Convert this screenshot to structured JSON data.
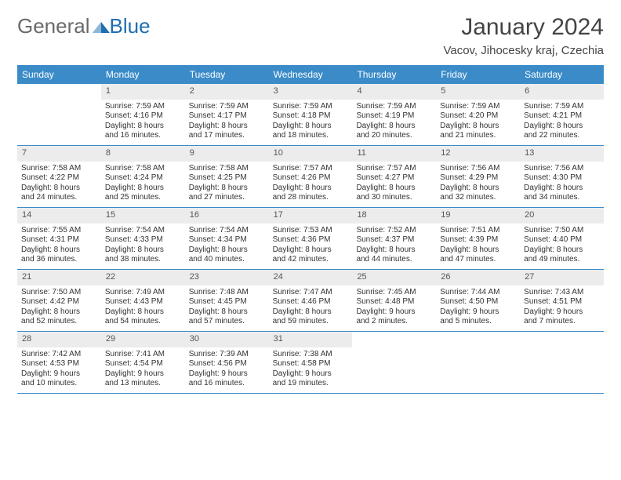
{
  "logo": {
    "part1": "General",
    "part2": "Blue"
  },
  "title": "January 2024",
  "location": "Vacov, Jihocesky kraj, Czechia",
  "colors": {
    "header_bg": "#3b8bc9",
    "header_text": "#ffffff",
    "daynum_bg": "#ececec",
    "border": "#3b8bc9",
    "logo_gray": "#6a6a6a",
    "logo_blue": "#1f6fb2"
  },
  "daysOfWeek": [
    "Sunday",
    "Monday",
    "Tuesday",
    "Wednesday",
    "Thursday",
    "Friday",
    "Saturday"
  ],
  "weeks": [
    [
      {
        "n": "",
        "sr": "",
        "ss": "",
        "dl1": "",
        "dl2": "",
        "empty": true
      },
      {
        "n": "1",
        "sr": "Sunrise: 7:59 AM",
        "ss": "Sunset: 4:16 PM",
        "dl1": "Daylight: 8 hours",
        "dl2": "and 16 minutes."
      },
      {
        "n": "2",
        "sr": "Sunrise: 7:59 AM",
        "ss": "Sunset: 4:17 PM",
        "dl1": "Daylight: 8 hours",
        "dl2": "and 17 minutes."
      },
      {
        "n": "3",
        "sr": "Sunrise: 7:59 AM",
        "ss": "Sunset: 4:18 PM",
        "dl1": "Daylight: 8 hours",
        "dl2": "and 18 minutes."
      },
      {
        "n": "4",
        "sr": "Sunrise: 7:59 AM",
        "ss": "Sunset: 4:19 PM",
        "dl1": "Daylight: 8 hours",
        "dl2": "and 20 minutes."
      },
      {
        "n": "5",
        "sr": "Sunrise: 7:59 AM",
        "ss": "Sunset: 4:20 PM",
        "dl1": "Daylight: 8 hours",
        "dl2": "and 21 minutes."
      },
      {
        "n": "6",
        "sr": "Sunrise: 7:59 AM",
        "ss": "Sunset: 4:21 PM",
        "dl1": "Daylight: 8 hours",
        "dl2": "and 22 minutes."
      }
    ],
    [
      {
        "n": "7",
        "sr": "Sunrise: 7:58 AM",
        "ss": "Sunset: 4:22 PM",
        "dl1": "Daylight: 8 hours",
        "dl2": "and 24 minutes."
      },
      {
        "n": "8",
        "sr": "Sunrise: 7:58 AM",
        "ss": "Sunset: 4:24 PM",
        "dl1": "Daylight: 8 hours",
        "dl2": "and 25 minutes."
      },
      {
        "n": "9",
        "sr": "Sunrise: 7:58 AM",
        "ss": "Sunset: 4:25 PM",
        "dl1": "Daylight: 8 hours",
        "dl2": "and 27 minutes."
      },
      {
        "n": "10",
        "sr": "Sunrise: 7:57 AM",
        "ss": "Sunset: 4:26 PM",
        "dl1": "Daylight: 8 hours",
        "dl2": "and 28 minutes."
      },
      {
        "n": "11",
        "sr": "Sunrise: 7:57 AM",
        "ss": "Sunset: 4:27 PM",
        "dl1": "Daylight: 8 hours",
        "dl2": "and 30 minutes."
      },
      {
        "n": "12",
        "sr": "Sunrise: 7:56 AM",
        "ss": "Sunset: 4:29 PM",
        "dl1": "Daylight: 8 hours",
        "dl2": "and 32 minutes."
      },
      {
        "n": "13",
        "sr": "Sunrise: 7:56 AM",
        "ss": "Sunset: 4:30 PM",
        "dl1": "Daylight: 8 hours",
        "dl2": "and 34 minutes."
      }
    ],
    [
      {
        "n": "14",
        "sr": "Sunrise: 7:55 AM",
        "ss": "Sunset: 4:31 PM",
        "dl1": "Daylight: 8 hours",
        "dl2": "and 36 minutes."
      },
      {
        "n": "15",
        "sr": "Sunrise: 7:54 AM",
        "ss": "Sunset: 4:33 PM",
        "dl1": "Daylight: 8 hours",
        "dl2": "and 38 minutes."
      },
      {
        "n": "16",
        "sr": "Sunrise: 7:54 AM",
        "ss": "Sunset: 4:34 PM",
        "dl1": "Daylight: 8 hours",
        "dl2": "and 40 minutes."
      },
      {
        "n": "17",
        "sr": "Sunrise: 7:53 AM",
        "ss": "Sunset: 4:36 PM",
        "dl1": "Daylight: 8 hours",
        "dl2": "and 42 minutes."
      },
      {
        "n": "18",
        "sr": "Sunrise: 7:52 AM",
        "ss": "Sunset: 4:37 PM",
        "dl1": "Daylight: 8 hours",
        "dl2": "and 44 minutes."
      },
      {
        "n": "19",
        "sr": "Sunrise: 7:51 AM",
        "ss": "Sunset: 4:39 PM",
        "dl1": "Daylight: 8 hours",
        "dl2": "and 47 minutes."
      },
      {
        "n": "20",
        "sr": "Sunrise: 7:50 AM",
        "ss": "Sunset: 4:40 PM",
        "dl1": "Daylight: 8 hours",
        "dl2": "and 49 minutes."
      }
    ],
    [
      {
        "n": "21",
        "sr": "Sunrise: 7:50 AM",
        "ss": "Sunset: 4:42 PM",
        "dl1": "Daylight: 8 hours",
        "dl2": "and 52 minutes."
      },
      {
        "n": "22",
        "sr": "Sunrise: 7:49 AM",
        "ss": "Sunset: 4:43 PM",
        "dl1": "Daylight: 8 hours",
        "dl2": "and 54 minutes."
      },
      {
        "n": "23",
        "sr": "Sunrise: 7:48 AM",
        "ss": "Sunset: 4:45 PM",
        "dl1": "Daylight: 8 hours",
        "dl2": "and 57 minutes."
      },
      {
        "n": "24",
        "sr": "Sunrise: 7:47 AM",
        "ss": "Sunset: 4:46 PM",
        "dl1": "Daylight: 8 hours",
        "dl2": "and 59 minutes."
      },
      {
        "n": "25",
        "sr": "Sunrise: 7:45 AM",
        "ss": "Sunset: 4:48 PM",
        "dl1": "Daylight: 9 hours",
        "dl2": "and 2 minutes."
      },
      {
        "n": "26",
        "sr": "Sunrise: 7:44 AM",
        "ss": "Sunset: 4:50 PM",
        "dl1": "Daylight: 9 hours",
        "dl2": "and 5 minutes."
      },
      {
        "n": "27",
        "sr": "Sunrise: 7:43 AM",
        "ss": "Sunset: 4:51 PM",
        "dl1": "Daylight: 9 hours",
        "dl2": "and 7 minutes."
      }
    ],
    [
      {
        "n": "28",
        "sr": "Sunrise: 7:42 AM",
        "ss": "Sunset: 4:53 PM",
        "dl1": "Daylight: 9 hours",
        "dl2": "and 10 minutes."
      },
      {
        "n": "29",
        "sr": "Sunrise: 7:41 AM",
        "ss": "Sunset: 4:54 PM",
        "dl1": "Daylight: 9 hours",
        "dl2": "and 13 minutes."
      },
      {
        "n": "30",
        "sr": "Sunrise: 7:39 AM",
        "ss": "Sunset: 4:56 PM",
        "dl1": "Daylight: 9 hours",
        "dl2": "and 16 minutes."
      },
      {
        "n": "31",
        "sr": "Sunrise: 7:38 AM",
        "ss": "Sunset: 4:58 PM",
        "dl1": "Daylight: 9 hours",
        "dl2": "and 19 minutes."
      },
      {
        "n": "",
        "sr": "",
        "ss": "",
        "dl1": "",
        "dl2": "",
        "empty": true
      },
      {
        "n": "",
        "sr": "",
        "ss": "",
        "dl1": "",
        "dl2": "",
        "empty": true
      },
      {
        "n": "",
        "sr": "",
        "ss": "",
        "dl1": "",
        "dl2": "",
        "empty": true
      }
    ]
  ]
}
